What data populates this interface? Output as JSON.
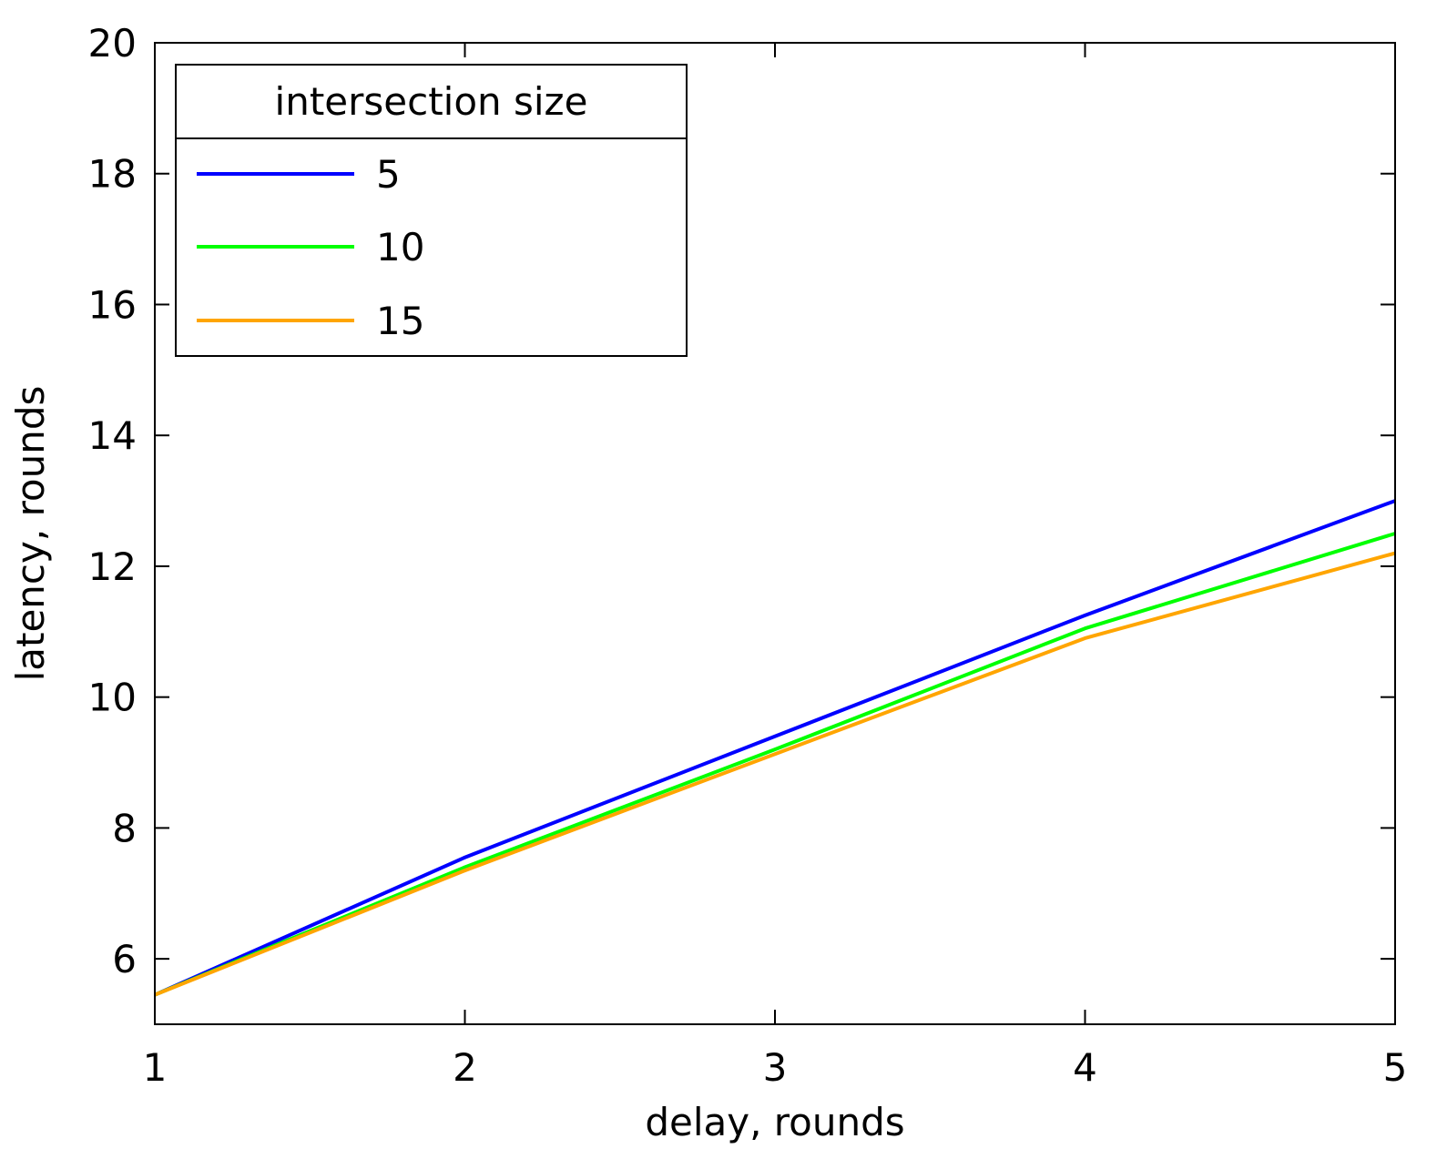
{
  "chart_data": {
    "type": "line",
    "xlabel": "delay, rounds",
    "ylabel": "latency, rounds",
    "xlim": [
      1,
      5
    ],
    "ylim": [
      5,
      20
    ],
    "xticks": [
      1,
      2,
      3,
      4,
      5
    ],
    "yticks": [
      6,
      8,
      10,
      12,
      14,
      16,
      18,
      20
    ],
    "x": [
      1,
      2,
      3,
      4,
      5
    ],
    "legend": {
      "title": "intersection size",
      "position": "top-left"
    },
    "grid": false,
    "series": [
      {
        "name": "5",
        "color": "#0000ff",
        "values": [
          5.45,
          7.55,
          9.4,
          11.25,
          13.0
        ]
      },
      {
        "name": "10",
        "color": "#00ff00",
        "values": [
          5.45,
          7.4,
          9.2,
          11.05,
          12.5
        ]
      },
      {
        "name": "15",
        "color": "#ffa500",
        "values": [
          5.45,
          7.35,
          9.13,
          10.9,
          12.2
        ]
      }
    ]
  }
}
